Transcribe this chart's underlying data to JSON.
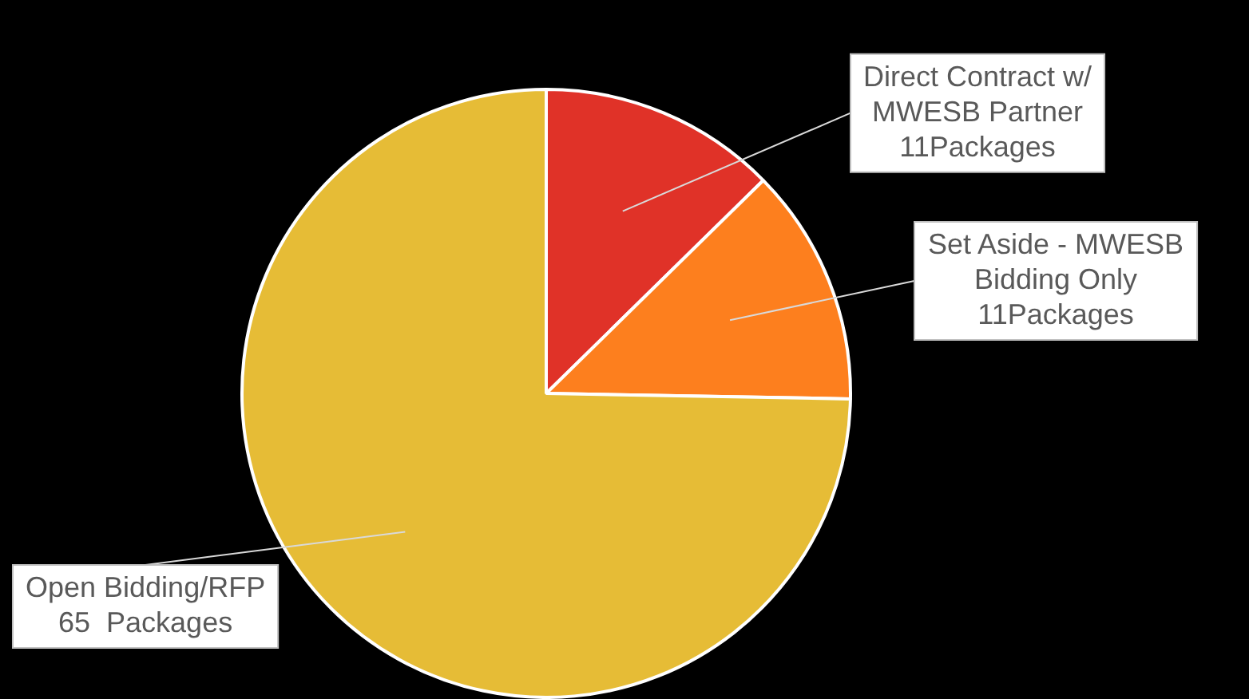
{
  "chart_data": {
    "type": "pie",
    "categories": [
      "Direct Contract w/ MWESB Partner",
      "Set Aside - MWESB Bidding Only",
      "Open Bidding/RFP"
    ],
    "values": [
      11,
      11,
      65
    ],
    "colors": [
      "#e03228",
      "#fd7f1e",
      "#e6bc36"
    ],
    "value_labels": [
      "11Packages",
      "11Packages",
      "65  Packages"
    ],
    "legend": false
  }
}
